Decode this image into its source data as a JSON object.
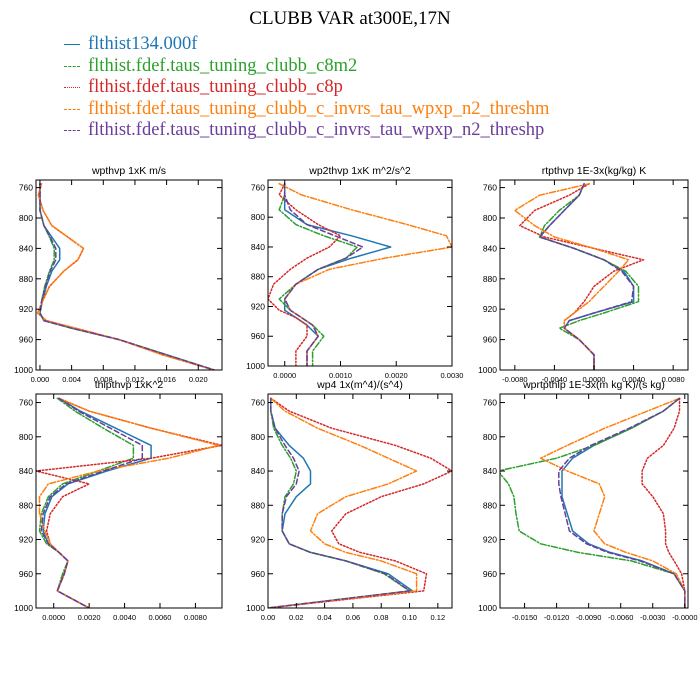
{
  "title": "CLUBB VAR at300E,17N",
  "legend": [
    {
      "label": "flthist134.000f",
      "color": "#1f77b4",
      "dash": "solid"
    },
    {
      "label": "flthist.fdef.taus_tuning_clubb_c8m2",
      "color": "#2ca02c",
      "dash": "dashdot"
    },
    {
      "label": "flthist.fdef.taus_tuning_clubb_c8p",
      "color": "#d62728",
      "dash": "dot"
    },
    {
      "label": "flthist.fdef.taus_tuning_clubb_c_invrs_tau_wpxp_n2_threshm",
      "color": "#ff7f0e",
      "dash": "dashdot"
    },
    {
      "label": "flthist.fdef.taus_tuning_clubb_c_invrs_tau_wpxp_n2_threshp",
      "color": "#6a3d9a",
      "dash": "dash"
    }
  ],
  "chart_data": [
    {
      "type": "line",
      "title": "wpthvp  1xK m/s",
      "xlim": [
        -0.0005,
        0.023
      ],
      "ylim": [
        1000,
        750
      ],
      "yticks": [
        760,
        800,
        840,
        880,
        920,
        960,
        1000
      ],
      "xticks": [
        0.0,
        0.004,
        0.008,
        0.012,
        0.016,
        0.02
      ],
      "xticklabels": [
        "0.000",
        "0.004",
        "0.008",
        "0.012",
        "0.016",
        "0.020"
      ],
      "pressure": [
        755,
        770,
        790,
        810,
        825,
        840,
        855,
        870,
        890,
        910,
        925,
        935,
        945,
        960,
        980,
        1000
      ],
      "series": [
        {
          "values": [
            0.0,
            0.0,
            0.0,
            0.0005,
            0.0015,
            0.0025,
            0.0025,
            0.0015,
            0.0008,
            0.0003,
            0.0,
            0.0005,
            0.004,
            0.01,
            0.016,
            0.022
          ]
        },
        {
          "values": [
            0.0,
            0.0,
            0.0,
            0.0005,
            0.0012,
            0.0018,
            0.0018,
            0.0012,
            0.0006,
            0.0002,
            0.0,
            0.0005,
            0.004,
            0.01,
            0.016,
            0.022
          ]
        },
        {
          "values": [
            0.0002,
            -0.0002,
            0.0004,
            0.0015,
            0.0035,
            0.0055,
            0.0048,
            0.003,
            0.0012,
            0.0003,
            -0.0003,
            0.0008,
            0.0045,
            0.01,
            0.0155,
            0.022
          ]
        },
        {
          "values": [
            0.0002,
            -0.0002,
            0.0004,
            0.0015,
            0.0035,
            0.0055,
            0.0048,
            0.003,
            0.0012,
            0.0003,
            -0.0003,
            0.0008,
            0.0045,
            0.01,
            0.0155,
            0.022
          ]
        },
        {
          "values": [
            0.0,
            0.0,
            0.0,
            0.0005,
            0.0013,
            0.002,
            0.002,
            0.0013,
            0.0007,
            0.0002,
            0.0,
            0.0005,
            0.004,
            0.01,
            0.016,
            0.022
          ]
        }
      ]
    },
    {
      "type": "line",
      "title": "wp2thvp  1xK m^2/s^2",
      "xlim": [
        -0.0003,
        0.003
      ],
      "ylim": [
        1000,
        750
      ],
      "yticks": [
        760,
        800,
        840,
        880,
        920,
        960,
        1000
      ],
      "xticks": [
        0.0,
        0.001,
        0.002,
        0.003
      ],
      "xticklabels": [
        "0.0000",
        "0.0010",
        "0.0020",
        "0.0030"
      ],
      "pressure": [
        755,
        770,
        790,
        810,
        825,
        840,
        855,
        870,
        890,
        910,
        925,
        935,
        945,
        960,
        980,
        1000
      ],
      "series": [
        {
          "values": [
            0.0,
            0.0,
            0.0,
            0.0004,
            0.0012,
            0.0019,
            0.0012,
            0.0006,
            0.0002,
            0.0,
            0.0,
            0.0002,
            0.0004,
            0.0006,
            0.0004,
            0.0004
          ]
        },
        {
          "values": [
            0.0,
            0.0,
            -0.0001,
            0.0002,
            0.0007,
            0.0013,
            0.0011,
            0.0006,
            0.0002,
            -0.0001,
            0.0001,
            0.0003,
            0.0005,
            0.0007,
            0.0005,
            0.0005
          ]
        },
        {
          "values": [
            0.0,
            -0.0001,
            0.0002,
            0.0006,
            0.001,
            0.0008,
            0.0004,
            0.0001,
            -0.0002,
            -0.0003,
            -0.0001,
            0.0002,
            0.0004,
            0.0004,
            0.0002,
            0.0002
          ]
        },
        {
          "values": [
            -0.0001,
            0.0003,
            0.0012,
            0.0022,
            0.0029,
            0.003,
            0.0018,
            0.0008,
            0.0002,
            0.0,
            0.0001,
            0.0003,
            0.0005,
            0.0006,
            0.0004,
            0.0004
          ]
        },
        {
          "values": [
            0.0,
            0.0,
            0.0001,
            0.0004,
            0.0009,
            0.0014,
            0.0011,
            0.0006,
            0.0002,
            0.0,
            0.0001,
            0.0003,
            0.0005,
            0.0006,
            0.0004,
            0.0004
          ]
        }
      ]
    },
    {
      "type": "line",
      "title": "rtpthvp  1E-3x(kg/kg) K",
      "xlim": [
        -0.0095,
        0.0095
      ],
      "ylim": [
        1000,
        750
      ],
      "yticks": [
        760,
        800,
        840,
        880,
        920,
        960,
        1000
      ],
      "xticks": [
        -0.008,
        -0.004,
        0.0,
        0.004,
        0.008
      ],
      "xticklabels": [
        "-0.0080",
        "-0.0040",
        "0.0000",
        "0.0040",
        "0.0080"
      ],
      "pressure": [
        755,
        770,
        790,
        810,
        825,
        840,
        855,
        870,
        890,
        910,
        925,
        935,
        945,
        960,
        980,
        1000
      ],
      "series": [
        {
          "values": [
            -0.001,
            -0.0015,
            -0.003,
            -0.0045,
            -0.0055,
            -0.002,
            0.001,
            0.003,
            0.004,
            0.004,
            0.0,
            -0.0025,
            -0.003,
            -0.0015,
            0.0,
            0.0
          ]
        },
        {
          "values": [
            -0.001,
            -0.0015,
            -0.0035,
            -0.005,
            -0.0055,
            -0.002,
            0.001,
            0.0032,
            0.0045,
            0.0045,
            0.001,
            -0.0015,
            -0.0035,
            -0.0015,
            0.0,
            0.0
          ]
        },
        {
          "values": [
            -0.0005,
            -0.0025,
            -0.006,
            -0.0075,
            -0.005,
            0.0,
            0.005,
            0.002,
            0.0,
            -0.001,
            -0.002,
            -0.003,
            -0.003,
            -0.0015,
            0.0,
            0.0
          ]
        },
        {
          "values": [
            -0.0005,
            -0.0055,
            -0.008,
            -0.006,
            -0.004,
            0.0,
            0.0035,
            0.0025,
            0.001,
            -0.0005,
            -0.002,
            -0.003,
            -0.003,
            -0.0015,
            0.0,
            0.0
          ]
        },
        {
          "values": [
            -0.001,
            -0.0015,
            -0.003,
            -0.0045,
            -0.0055,
            -0.002,
            0.001,
            0.0028,
            0.004,
            0.0038,
            0.0,
            -0.0025,
            -0.003,
            -0.0015,
            0.0,
            0.0
          ]
        }
      ]
    },
    {
      "type": "line",
      "title": "thlpthvp  1xK^2",
      "xlim": [
        -0.001,
        0.0095
      ],
      "ylim": [
        1000,
        750
      ],
      "yticks": [
        760,
        800,
        840,
        880,
        920,
        960,
        1000
      ],
      "xticks": [
        0.0,
        0.002,
        0.004,
        0.006,
        0.008
      ],
      "xticklabels": [
        "0.0000",
        "0.0020",
        "0.0040",
        "0.0060",
        "0.0080"
      ],
      "pressure": [
        755,
        770,
        790,
        810,
        825,
        840,
        855,
        870,
        890,
        910,
        925,
        935,
        945,
        960,
        980,
        1000
      ],
      "series": [
        {
          "values": [
            0.0003,
            0.0015,
            0.0035,
            0.0055,
            0.0055,
            0.003,
            0.0008,
            -0.0001,
            -0.0005,
            -0.0006,
            -0.0003,
            0.0003,
            0.0008,
            0.0006,
            0.0002,
            0.002
          ]
        },
        {
          "values": [
            0.0002,
            0.0012,
            0.0028,
            0.0045,
            0.0045,
            0.0025,
            0.0005,
            -0.0003,
            -0.0007,
            -0.0008,
            -0.0004,
            0.0003,
            0.0008,
            0.0005,
            0.0002,
            0.002
          ]
        },
        {
          "values": [
            0.0003,
            0.002,
            0.0055,
            0.0095,
            0.0055,
            -0.001,
            0.002,
            0.0005,
            -0.0002,
            -0.0004,
            -0.0002,
            0.0003,
            0.0008,
            0.0006,
            0.0002,
            0.002
          ]
        },
        {
          "values": [
            0.0003,
            0.002,
            0.0055,
            0.0093,
            0.0065,
            0.0025,
            -0.0003,
            -0.0008,
            -0.0008,
            -0.0005,
            -0.0002,
            0.0003,
            0.0008,
            0.0006,
            0.0002,
            0.002
          ]
        },
        {
          "values": [
            0.0003,
            0.0014,
            0.0032,
            0.005,
            0.005,
            0.0028,
            0.0007,
            -0.0002,
            -0.0006,
            -0.0007,
            -0.0003,
            0.0003,
            0.0008,
            0.0006,
            0.0002,
            0.002
          ]
        }
      ]
    },
    {
      "type": "line",
      "title": "wp4  1x(m^4)/(s^4)",
      "xlim": [
        0.0,
        0.13
      ],
      "ylim": [
        1000,
        750
      ],
      "yticks": [
        760,
        800,
        840,
        880,
        920,
        960,
        1000
      ],
      "xticks": [
        0.0,
        0.02,
        0.04,
        0.06,
        0.08,
        0.1,
        0.12
      ],
      "xticklabels": [
        "0.00",
        "0.02",
        "0.04",
        "0.06",
        "0.08",
        "0.10",
        "0.12"
      ],
      "pressure": [
        755,
        770,
        790,
        810,
        825,
        840,
        855,
        870,
        890,
        910,
        925,
        935,
        945,
        960,
        980,
        1000
      ],
      "series": [
        {
          "values": [
            0.002,
            0.002,
            0.005,
            0.015,
            0.025,
            0.03,
            0.03,
            0.02,
            0.012,
            0.01,
            0.015,
            0.03,
            0.055,
            0.085,
            0.102,
            0.0
          ]
        },
        {
          "values": [
            0.002,
            0.002,
            0.004,
            0.01,
            0.016,
            0.02,
            0.018,
            0.012,
            0.01,
            0.01,
            0.015,
            0.03,
            0.055,
            0.082,
            0.1,
            0.0
          ]
        },
        {
          "values": [
            0.002,
            0.015,
            0.045,
            0.09,
            0.115,
            0.13,
            0.11,
            0.08,
            0.055,
            0.045,
            0.05,
            0.065,
            0.09,
            0.112,
            0.11,
            0.0
          ]
        },
        {
          "values": [
            0.002,
            0.012,
            0.035,
            0.065,
            0.085,
            0.105,
            0.085,
            0.055,
            0.035,
            0.03,
            0.04,
            0.055,
            0.08,
            0.105,
            0.105,
            0.0
          ]
        },
        {
          "values": [
            0.002,
            0.002,
            0.005,
            0.012,
            0.018,
            0.022,
            0.02,
            0.013,
            0.01,
            0.01,
            0.015,
            0.03,
            0.055,
            0.083,
            0.1,
            0.0
          ]
        }
      ]
    },
    {
      "type": "line",
      "title": "wprtpthlp  1E-3x(m kg K)/(s kg)",
      "xlim": [
        -0.0173,
        0.0003
      ],
      "ylim": [
        1000,
        750
      ],
      "yticks": [
        760,
        800,
        840,
        880,
        920,
        960,
        1000
      ],
      "xticks": [
        -0.015,
        -0.012,
        -0.009,
        -0.006,
        -0.003,
        0.0
      ],
      "xticklabels": [
        "-0.0150",
        "-0.0120",
        "-0.0090",
        "-0.0060",
        "-0.0030",
        "-0.0000"
      ],
      "pressure": [
        755,
        770,
        790,
        810,
        825,
        840,
        855,
        870,
        890,
        910,
        925,
        935,
        945,
        960,
        980,
        1000
      ],
      "series": [
        {
          "values": [
            -0.0005,
            -0.002,
            -0.005,
            -0.0085,
            -0.0105,
            -0.0115,
            -0.0115,
            -0.0115,
            -0.011,
            -0.0105,
            -0.009,
            -0.007,
            -0.004,
            -0.001,
            0.0,
            0.0
          ]
        },
        {
          "values": [
            -0.0005,
            -0.002,
            -0.005,
            -0.0085,
            -0.012,
            -0.0175,
            -0.0165,
            -0.016,
            -0.0158,
            -0.0155,
            -0.0135,
            -0.01,
            -0.005,
            -0.001,
            0.0,
            0.0
          ]
        },
        {
          "values": [
            -0.0005,
            -0.0005,
            -0.001,
            -0.002,
            -0.0035,
            -0.004,
            -0.004,
            -0.003,
            -0.002,
            -0.0018,
            -0.0018,
            -0.0015,
            -0.001,
            -0.0003,
            0.0,
            0.0
          ]
        },
        {
          "values": [
            -0.0005,
            -0.0035,
            -0.0075,
            -0.011,
            -0.0135,
            -0.011,
            -0.008,
            -0.0075,
            -0.008,
            -0.0085,
            -0.0075,
            -0.0055,
            -0.003,
            -0.0008,
            0.0,
            0.0
          ]
        },
        {
          "values": [
            -0.0005,
            -0.002,
            -0.0052,
            -0.0088,
            -0.0108,
            -0.0118,
            -0.0118,
            -0.0116,
            -0.0112,
            -0.0108,
            -0.0092,
            -0.0072,
            -0.0042,
            -0.001,
            0.0,
            0.0
          ]
        }
      ]
    }
  ]
}
